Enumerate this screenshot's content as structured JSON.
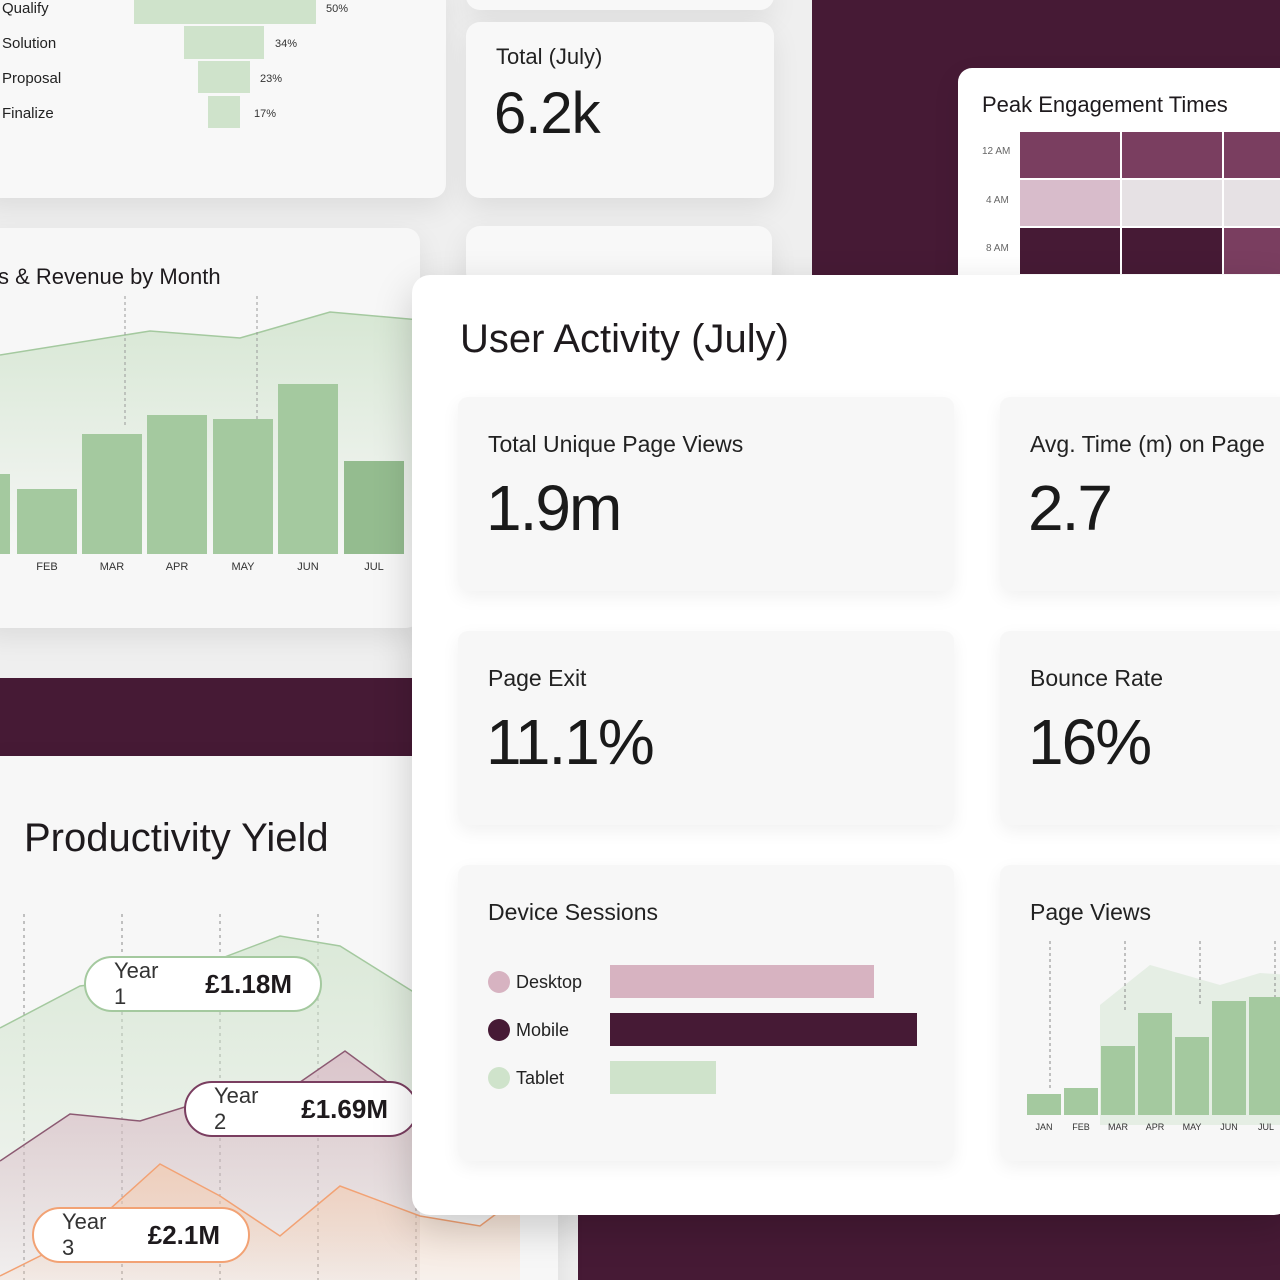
{
  "colors": {
    "maroon": "#461a35",
    "green_bar": "#a4c99f",
    "green_light": "#cfe3cb",
    "pink": "#d7b3c1",
    "orange": "#f2a274"
  },
  "funnel": {
    "stages": [
      {
        "label": "Qualify",
        "pct": "50%"
      },
      {
        "label": "Solution",
        "pct": "34%"
      },
      {
        "label": "Proposal",
        "pct": "23%"
      },
      {
        "label": "Finalize",
        "pct": "17%"
      }
    ]
  },
  "total_card": {
    "label": "Total (July)",
    "value": "6.2k"
  },
  "peak": {
    "title": "Peak Engagement Times",
    "rows": [
      "12 AM",
      "4 AM",
      "8 AM"
    ]
  },
  "revenue_chart": {
    "title": "s & Revenue by Month",
    "months": [
      "FEB",
      "MAR",
      "APR",
      "MAY",
      "JUN",
      "JUL"
    ]
  },
  "productivity": {
    "title": "Productivity Yield",
    "years": [
      {
        "label": "Year 1",
        "value": "£1.18M"
      },
      {
        "label": "Year 2",
        "value": "£1.69M"
      },
      {
        "label": "Year 3",
        "value": "£2.1M"
      }
    ]
  },
  "user_activity": {
    "title": "User Activity (July)",
    "metrics": {
      "page_views": {
        "label": "Total Unique Page Views",
        "value": "1.9m"
      },
      "avg_time": {
        "label": "Avg. Time (m) on Page",
        "value": "2.7"
      },
      "page_exit": {
        "label": "Page Exit",
        "value": "11.1%"
      },
      "bounce": {
        "label": "Bounce Rate",
        "value": "16%"
      }
    },
    "device_sessions": {
      "title": "Device Sessions",
      "items": [
        {
          "label": "Desktop"
        },
        {
          "label": "Mobile"
        },
        {
          "label": "Tablet"
        }
      ]
    },
    "page_views_chart": {
      "title": "Page Views",
      "months": [
        "JAN",
        "FEB",
        "MAR",
        "APR",
        "MAY",
        "JUN",
        "JUL"
      ]
    }
  }
}
